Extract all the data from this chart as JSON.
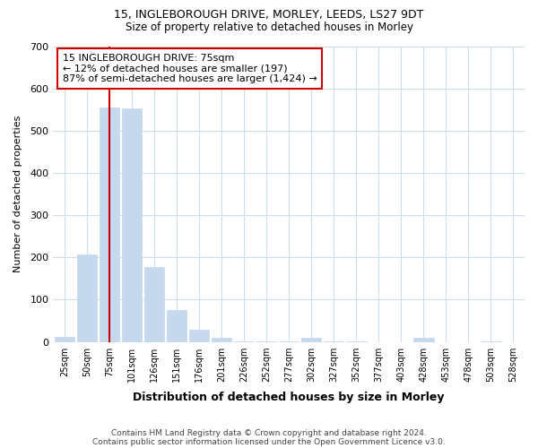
{
  "title1": "15, INGLEBOROUGH DRIVE, MORLEY, LEEDS, LS27 9DT",
  "title2": "Size of property relative to detached houses in Morley",
  "xlabel": "Distribution of detached houses by size in Morley",
  "ylabel": "Number of detached properties",
  "categories": [
    "25sqm",
    "50sqm",
    "75sqm",
    "101sqm",
    "126sqm",
    "151sqm",
    "176sqm",
    "201sqm",
    "226sqm",
    "252sqm",
    "277sqm",
    "302sqm",
    "327sqm",
    "352sqm",
    "377sqm",
    "403sqm",
    "428sqm",
    "453sqm",
    "478sqm",
    "503sqm",
    "528sqm"
  ],
  "values": [
    12,
    207,
    555,
    553,
    178,
    75,
    29,
    10,
    2,
    2,
    2,
    10,
    2,
    2,
    0,
    0,
    10,
    0,
    0,
    2,
    0
  ],
  "bar_color": "#c5d8ed",
  "bar_edge_color": "#c5d8ed",
  "highlight_index": 2,
  "highlight_color": "#cc0000",
  "ylim": [
    0,
    700
  ],
  "yticks": [
    0,
    100,
    200,
    300,
    400,
    500,
    600,
    700
  ],
  "annotation_text": "15 INGLEBOROUGH DRIVE: 75sqm\n← 12% of detached houses are smaller (197)\n87% of semi-detached houses are larger (1,424) →",
  "annotation_box_color": "#ffffff",
  "annotation_box_edge_color": "#cc0000",
  "footnote1": "Contains HM Land Registry data © Crown copyright and database right 2024.",
  "footnote2": "Contains public sector information licensed under the Open Government Licence v3.0.",
  "bg_color": "#ffffff",
  "plot_bg_color": "#ffffff",
  "grid_color": "#d0dce8"
}
